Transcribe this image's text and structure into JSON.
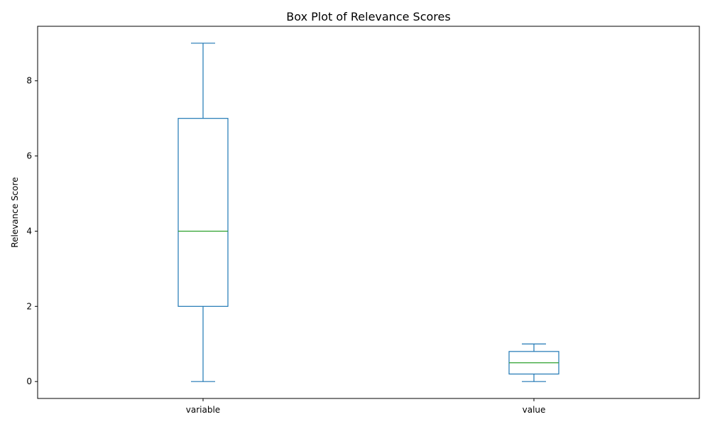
{
  "chart_data": {
    "type": "box",
    "title": "Box Plot of Relevance Scores",
    "xlabel": "",
    "ylabel": "Relevance Score",
    "ylim": [
      -0.45,
      9.45
    ],
    "yticks": [
      0,
      2,
      4,
      6,
      8
    ],
    "grid": false,
    "categories": [
      "variable",
      "value"
    ],
    "boxes": [
      {
        "category": "variable",
        "whisker_low": 0,
        "q1": 2,
        "median": 4,
        "q3": 7,
        "whisker_high": 9
      },
      {
        "category": "value",
        "whisker_low": 0,
        "q1": 0.2,
        "median": 0.5,
        "q3": 0.8,
        "whisker_high": 1.0
      }
    ],
    "colors": {
      "box": "#1f77b4",
      "median": "#2ca02c"
    }
  }
}
